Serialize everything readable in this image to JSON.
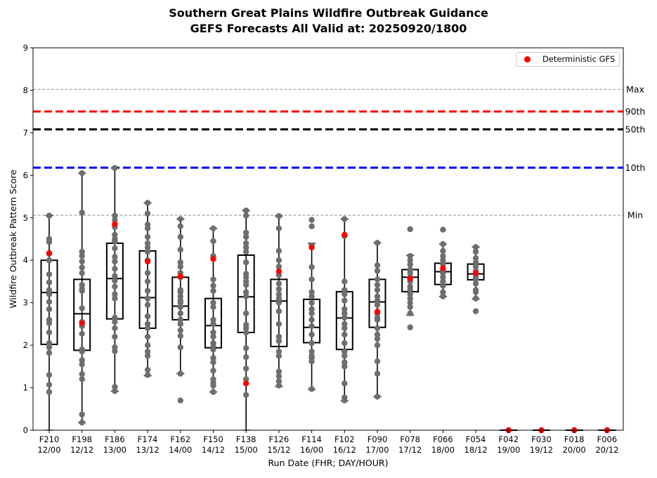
{
  "title": {
    "line1": "Southern Great Plains Wildfire Outbreak Guidance",
    "line2": "GEFS Forecasts All Valid at: 20250920/1800"
  },
  "legend": {
    "label": "Deterministic GFS"
  },
  "colors": {
    "ensemble_points": "#6e6e6e",
    "deterministic": "#ff0000",
    "p90": "#ff0000",
    "p50": "#000000",
    "p10": "#0000ff",
    "minmax": "#808080"
  },
  "chart_data": {
    "type": "box",
    "title": "Southern Great Plains Wildfire Outbreak Guidance\nGEFS Forecasts All Valid at: 20250920/1800",
    "xlabel": "Run Date (FHR; DAY/HOUR)",
    "ylabel": "Wildfire Outbreak Pattern Score",
    "ylim": [
      0,
      9
    ],
    "yticks": [
      "0",
      "1",
      "2",
      "3",
      "4",
      "5",
      "6",
      "7",
      "8",
      "9"
    ],
    "grid": false,
    "legend_position": "top-right",
    "reference_lines": [
      {
        "label": "Max",
        "value": 8.02,
        "style": "dashed-thin",
        "color": "#808080"
      },
      {
        "label": "90th",
        "value": 7.5,
        "style": "dashed-thick",
        "color": "#ff0000"
      },
      {
        "label": "50th",
        "value": 7.08,
        "style": "dashed-thick",
        "color": "#000000"
      },
      {
        "label": "10th",
        "value": 6.18,
        "style": "dashed-thick",
        "color": "#0000ff"
      },
      {
        "label": "Min",
        "value": 5.06,
        "style": "dashed-thin",
        "color": "#808080"
      }
    ],
    "categories": [
      {
        "fhr": "F210",
        "date": "12/00"
      },
      {
        "fhr": "F198",
        "date": "12/12"
      },
      {
        "fhr": "F186",
        "date": "13/00"
      },
      {
        "fhr": "F174",
        "date": "13/12"
      },
      {
        "fhr": "F162",
        "date": "14/00"
      },
      {
        "fhr": "F150",
        "date": "14/12"
      },
      {
        "fhr": "F138",
        "date": "15/00"
      },
      {
        "fhr": "F126",
        "date": "15/12"
      },
      {
        "fhr": "F114",
        "date": "16/00"
      },
      {
        "fhr": "F102",
        "date": "16/12"
      },
      {
        "fhr": "F090",
        "date": "17/00"
      },
      {
        "fhr": "F078",
        "date": "17/12"
      },
      {
        "fhr": "F066",
        "date": "18/00"
      },
      {
        "fhr": "F054",
        "date": "18/12"
      },
      {
        "fhr": "F042",
        "date": "19/00"
      },
      {
        "fhr": "F030",
        "date": "19/12"
      },
      {
        "fhr": "F018",
        "date": "20/00"
      },
      {
        "fhr": "F006",
        "date": "20/12"
      }
    ],
    "boxes": [
      {
        "min": 0.0,
        "q1": 2.02,
        "median": 3.24,
        "q3": 4.0,
        "max": 5.05,
        "deterministic": 4.17,
        "ensemble": [
          5.05,
          4.5,
          4.43,
          4.15,
          4.0,
          3.67,
          3.48,
          3.3,
          3.2,
          3.02,
          2.85,
          2.6,
          2.52,
          2.3,
          2.05,
          1.95,
          1.82,
          1.3,
          1.07,
          0.9
        ]
      },
      {
        "min": 0.18,
        "q1": 1.88,
        "median": 2.74,
        "q3": 3.55,
        "max": 6.05,
        "deterministic": 2.52,
        "ensemble": [
          6.05,
          5.12,
          4.2,
          4.1,
          3.97,
          3.83,
          3.7,
          3.42,
          3.33,
          3.28,
          2.87,
          2.55,
          2.45,
          2.27,
          1.9,
          1.85,
          1.65,
          1.55,
          1.32,
          1.2,
          0.37,
          0.18
        ]
      },
      {
        "min": 0.92,
        "q1": 2.62,
        "median": 3.57,
        "q3": 4.4,
        "max": 6.17,
        "deterministic": 4.85,
        "ensemble": [
          6.17,
          5.05,
          4.95,
          4.78,
          4.6,
          4.5,
          4.45,
          4.28,
          4.08,
          3.97,
          3.8,
          3.63,
          3.52,
          3.38,
          3.2,
          3.1,
          2.65,
          2.55,
          2.4,
          2.2,
          1.95,
          1.86,
          1.02,
          0.92
        ]
      },
      {
        "min": 1.28,
        "q1": 2.4,
        "median": 3.12,
        "q3": 4.22,
        "max": 5.35,
        "deterministic": 3.97,
        "ensemble": [
          5.35,
          5.1,
          4.84,
          4.75,
          4.55,
          4.4,
          4.3,
          4.2,
          4.0,
          3.7,
          3.5,
          3.28,
          3.1,
          2.95,
          2.68,
          2.5,
          2.4,
          2.2,
          2.0,
          1.85,
          1.75,
          1.42,
          1.3
        ]
      },
      {
        "min": 1.33,
        "q1": 2.6,
        "median": 2.92,
        "q3": 3.6,
        "max": 4.97,
        "deterministic": 3.62,
        "ensemble": [
          4.97,
          4.8,
          4.55,
          4.25,
          3.95,
          3.85,
          3.7,
          3.6,
          3.3,
          3.25,
          3.15,
          3.05,
          3.0,
          2.9,
          2.75,
          2.6,
          2.5,
          2.35,
          2.22,
          1.95,
          1.33,
          0.7
        ]
      },
      {
        "min": 0.9,
        "q1": 1.94,
        "median": 2.46,
        "q3": 3.1,
        "max": 4.75,
        "deterministic": 4.03,
        "ensemble": [
          4.75,
          4.45,
          4.1,
          3.55,
          3.4,
          3.28,
          3.0,
          2.9,
          2.6,
          2.5,
          2.3,
          2.2,
          2.05,
          1.98,
          1.9,
          1.7,
          1.6,
          1.4,
          1.2,
          1.12,
          1.05,
          0.9
        ]
      },
      {
        "min": 0.0,
        "q1": 2.3,
        "median": 3.14,
        "q3": 4.12,
        "max": 5.17,
        "deterministic": 1.1,
        "ensemble": [
          5.17,
          5.05,
          4.65,
          4.55,
          4.4,
          4.3,
          4.2,
          3.95,
          3.68,
          3.6,
          3.5,
          3.42,
          3.25,
          3.15,
          2.75,
          2.48,
          2.4,
          2.3,
          1.93,
          1.72,
          1.45,
          1.2,
          0.83
        ]
      },
      {
        "min": 1.03,
        "q1": 1.97,
        "median": 3.04,
        "q3": 3.55,
        "max": 5.04,
        "deterministic": 3.74,
        "ensemble": [
          5.04,
          4.75,
          4.22,
          4.0,
          3.85,
          3.65,
          3.45,
          3.32,
          3.2,
          3.1,
          3.0,
          2.8,
          2.5,
          2.2,
          2.1,
          1.85,
          1.75,
          1.38,
          1.27,
          1.15,
          1.05
        ]
      },
      {
        "min": 0.96,
        "q1": 2.06,
        "median": 2.42,
        "q3": 3.08,
        "max": 4.4,
        "deterministic": 4.3,
        "ensemble": [
          4.95,
          4.8,
          4.35,
          3.84,
          3.55,
          3.25,
          3.15,
          3.0,
          2.85,
          2.75,
          2.6,
          2.45,
          2.25,
          2.05,
          1.85,
          1.75,
          1.7,
          1.62,
          0.97
        ]
      },
      {
        "min": 0.69,
        "q1": 1.9,
        "median": 2.64,
        "q3": 3.26,
        "max": 4.97,
        "deterministic": 4.6,
        "ensemble": [
          4.97,
          4.57,
          3.5,
          3.3,
          3.2,
          3.05,
          2.85,
          2.75,
          2.65,
          2.5,
          2.4,
          2.25,
          2.05,
          1.85,
          1.75,
          1.6,
          1.5,
          1.1,
          0.77,
          0.7
        ]
      },
      {
        "min": 0.79,
        "q1": 2.42,
        "median": 3.02,
        "q3": 3.55,
        "max": 4.41,
        "deterministic": 2.79,
        "ensemble": [
          4.41,
          3.88,
          3.75,
          3.55,
          3.42,
          3.3,
          3.15,
          3.05,
          2.95,
          2.75,
          2.65,
          2.6,
          2.4,
          2.25,
          2.15,
          2.0,
          1.62,
          1.33,
          0.79
        ]
      },
      {
        "min": 2.71,
        "q1": 3.26,
        "median": 3.6,
        "q3": 3.78,
        "max": 4.12,
        "deterministic": 3.57,
        "ensemble": [
          4.73,
          4.1,
          4.0,
          3.9,
          3.78,
          3.7,
          3.6,
          3.5,
          3.38,
          3.3,
          3.2,
          3.1,
          3.0,
          2.9,
          2.75,
          2.42
        ]
      },
      {
        "min": 3.15,
        "q1": 3.43,
        "median": 3.73,
        "q3": 3.93,
        "max": 4.38,
        "deterministic": 3.81,
        "ensemble": [
          4.72,
          4.38,
          4.22,
          4.1,
          4.0,
          3.9,
          3.78,
          3.7,
          3.6,
          3.5,
          3.4,
          3.25,
          3.15
        ]
      },
      {
        "min": 3.09,
        "q1": 3.54,
        "median": 3.68,
        "q3": 3.91,
        "max": 4.31,
        "deterministic": 3.7,
        "ensemble": [
          4.31,
          4.2,
          4.05,
          3.95,
          3.85,
          3.75,
          3.62,
          3.55,
          3.45,
          3.3,
          3.25,
          3.1,
          2.8
        ]
      },
      {
        "min": 0.0,
        "q1": 0.0,
        "median": 0.0,
        "q3": 0.0,
        "max": 0.0,
        "deterministic": 0.0,
        "ensemble": [
          0.0
        ]
      },
      {
        "min": 0.0,
        "q1": 0.0,
        "median": 0.0,
        "q3": 0.0,
        "max": 0.0,
        "deterministic": 0.0,
        "ensemble": [
          0.0
        ]
      },
      {
        "min": 0.0,
        "q1": 0.0,
        "median": 0.0,
        "q3": 0.0,
        "max": 0.0,
        "deterministic": 0.0,
        "ensemble": [
          0.0
        ]
      },
      {
        "min": 0.0,
        "q1": 0.0,
        "median": 0.0,
        "q3": 0.0,
        "max": 0.0,
        "deterministic": 0.0,
        "ensemble": [
          0.0
        ]
      }
    ]
  }
}
